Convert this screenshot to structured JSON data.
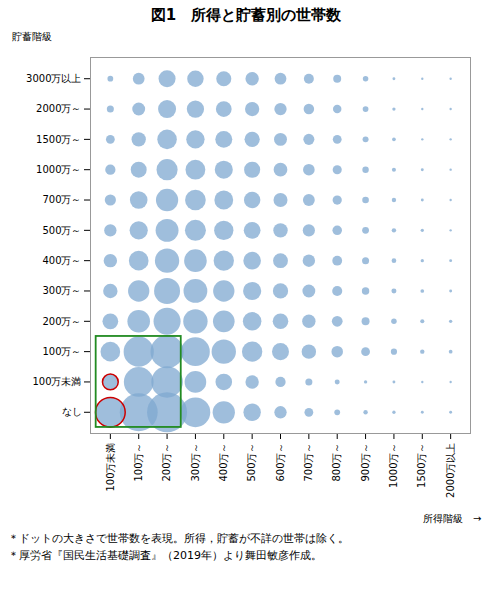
{
  "chart_data": {
    "type": "bubble",
    "title": "図1　所得と貯蓄別の世帯数",
    "x_label": "所得階級　→",
    "y_label": "貯蓄階級",
    "x": [
      "100万未満",
      "100万～",
      "200万～",
      "300万～",
      "400万～",
      "500万～",
      "600万～",
      "700万～",
      "800万～",
      "900万～",
      "1000万～",
      "1500万～",
      "2000万以上"
    ],
    "y": [
      "なし",
      "100万未満",
      "100万～",
      "200万～",
      "300万～",
      "400万～",
      "500万～",
      "700万～",
      "1000万～",
      "1500万～",
      "2000万～",
      "3000万以上"
    ],
    "sizes": [
      [
        320,
        520,
        580,
        320,
        180,
        110,
        55,
        28,
        12,
        7,
        4,
        3,
        3
      ],
      [
        90,
        320,
        360,
        170,
        100,
        65,
        38,
        18,
        9,
        4,
        3,
        2,
        2
      ],
      [
        140,
        330,
        400,
        300,
        215,
        150,
        105,
        75,
        48,
        28,
        14,
        7,
        5
      ],
      [
        90,
        185,
        265,
        215,
        170,
        125,
        88,
        65,
        42,
        23,
        11,
        6,
        4
      ],
      [
        75,
        165,
        245,
        205,
        165,
        120,
        84,
        60,
        37,
        20,
        9,
        5,
        3
      ],
      [
        65,
        140,
        215,
        185,
        150,
        112,
        80,
        56,
        35,
        18,
        8,
        4,
        3
      ],
      [
        55,
        120,
        190,
        160,
        135,
        102,
        75,
        54,
        33,
        17,
        7,
        4,
        2
      ],
      [
        45,
        112,
        180,
        155,
        128,
        98,
        71,
        51,
        31,
        16,
        7,
        3,
        2
      ],
      [
        38,
        92,
        162,
        142,
        118,
        94,
        68,
        49,
        30,
        15,
        6,
        3,
        2
      ],
      [
        28,
        74,
        138,
        122,
        104,
        84,
        61,
        44,
        28,
        13,
        5,
        2,
        2
      ],
      [
        18,
        60,
        118,
        108,
        90,
        74,
        55,
        40,
        26,
        12,
        4,
        2,
        2
      ],
      [
        12,
        50,
        105,
        98,
        82,
        65,
        50,
        36,
        23,
        11,
        3,
        2,
        2
      ]
    ],
    "color": "#7fa8d0",
    "highlight_cells": [
      [
        0,
        0
      ],
      [
        1,
        0
      ]
    ],
    "highlight_color": "#cc0000",
    "box_rows": [
      0,
      1,
      2
    ],
    "box_cols": [
      0,
      1,
      2
    ],
    "box_color": "#228B22",
    "notes": [
      "＊ドットの大きさで世帯数を表現。所得，貯蓄が不詳の世帯は除く。",
      "＊厚労省『国民生活基礎調査』（2019年）より舞田敏彦作成。"
    ],
    "grid": false
  }
}
